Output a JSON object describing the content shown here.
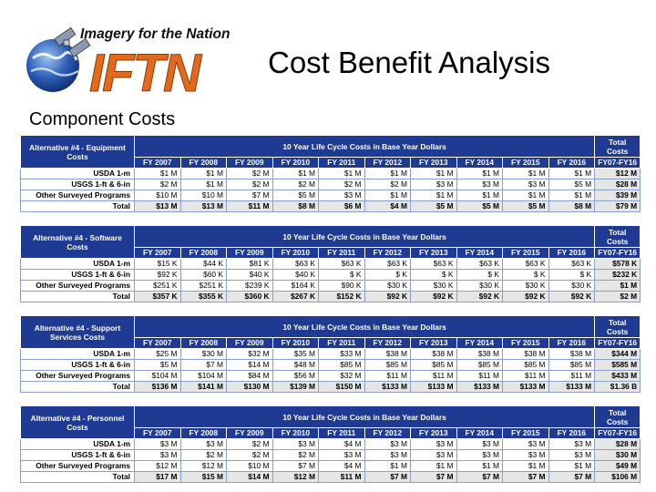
{
  "header": {
    "logo_tagline": "Imagery for the Nation",
    "logo_letters": "IFTN",
    "title": "Cost Benefit Analysis",
    "subtitle": "Component Costs"
  },
  "years": [
    "FY 2007",
    "FY 2008",
    "FY 2009",
    "FY 2010",
    "FY 2011",
    "FY 2012",
    "FY 2013",
    "FY 2014",
    "FY 2015",
    "FY 2016"
  ],
  "span_label": "10 Year Life Cycle Costs in Base Year Dollars",
  "total_header_1": "Total Costs",
  "total_header_2": "FY07-FY16",
  "tables": [
    {
      "title": "Alternative #4 - Equipment Costs",
      "rows": [
        {
          "label": "USDA 1-m",
          "values": [
            "$1 M",
            "$1 M",
            "$2 M",
            "$1 M",
            "$1 M",
            "$1 M",
            "$1 M",
            "$1 M",
            "$1 M",
            "$1 M"
          ],
          "total": "$12 M"
        },
        {
          "label": "USGS 1-ft & 6-in",
          "values": [
            "$2 M",
            "$1 M",
            "$2 M",
            "$2 M",
            "$2 M",
            "$2 M",
            "$3 M",
            "$3 M",
            "$3 M",
            "$5 M"
          ],
          "total": "$28 M"
        },
        {
          "label": "Other Surveyed Programs",
          "values": [
            "$10 M",
            "$10 M",
            "$7 M",
            "$5 M",
            "$3 M",
            "$1 M",
            "$1 M",
            "$1 M",
            "$1 M",
            "$1 M"
          ],
          "total": "$39 M"
        },
        {
          "label": "Total",
          "values": [
            "$13 M",
            "$13 M",
            "$11 M",
            "$8 M",
            "$6 M",
            "$4 M",
            "$5 M",
            "$5 M",
            "$5 M",
            "$8 M"
          ],
          "total": "$79 M"
        }
      ]
    },
    {
      "title": "Alternative #4 - Software Costs",
      "rows": [
        {
          "label": "USDA 1-m",
          "values": [
            "$15 K",
            "$44 K",
            "$81 K",
            "$63 K",
            "$63 K",
            "$63 K",
            "$63 K",
            "$63 K",
            "$63 K",
            "$63 K"
          ],
          "total": "$578 K"
        },
        {
          "label": "USGS 1-ft & 6-in",
          "values": [
            "$92 K",
            "$60 K",
            "$40 K",
            "$40 K",
            "$ K",
            "$ K",
            "$ K",
            "$ K",
            "$ K",
            "$ K"
          ],
          "total": "$232 K"
        },
        {
          "label": "Other Surveyed Programs",
          "values": [
            "$251 K",
            "$251 K",
            "$239 K",
            "$164 K",
            "$90 K",
            "$30 K",
            "$30 K",
            "$30 K",
            "$30 K",
            "$30 K"
          ],
          "total": "$1 M"
        },
        {
          "label": "Total",
          "values": [
            "$357 K",
            "$355 K",
            "$360 K",
            "$267 K",
            "$152 K",
            "$92 K",
            "$92 K",
            "$92 K",
            "$92 K",
            "$92 K"
          ],
          "total": "$2 M"
        }
      ]
    },
    {
      "title": "Alternative #4 - Support Services Costs",
      "rows": [
        {
          "label": "USDA 1-m",
          "values": [
            "$25 M",
            "$30 M",
            "$32 M",
            "$35 M",
            "$33 M",
            "$38 M",
            "$38 M",
            "$38 M",
            "$38 M",
            "$38 M"
          ],
          "total": "$344 M"
        },
        {
          "label": "USGS 1-ft & 6-in",
          "values": [
            "$5 M",
            "$7 M",
            "$14 M",
            "$48 M",
            "$85 M",
            "$85 M",
            "$85 M",
            "$85 M",
            "$85 M",
            "$85 M"
          ],
          "total": "$585 M"
        },
        {
          "label": "Other Surveyed Programs",
          "values": [
            "$104 M",
            "$104 M",
            "$84 M",
            "$56 M",
            "$32 M",
            "$11 M",
            "$11 M",
            "$11 M",
            "$11 M",
            "$11 M"
          ],
          "total": "$433 M"
        },
        {
          "label": "Total",
          "values": [
            "$136 M",
            "$141 M",
            "$130 M",
            "$139 M",
            "$150 M",
            "$133 M",
            "$133 M",
            "$133 M",
            "$133 M",
            "$133 M"
          ],
          "total": "$1.36 B"
        }
      ]
    },
    {
      "title": "Alternative #4 - Personnel Costs",
      "rows": [
        {
          "label": "USDA 1-m",
          "values": [
            "$3 M",
            "$3 M",
            "$2 M",
            "$3 M",
            "$4 M",
            "$3 M",
            "$3 M",
            "$3 M",
            "$3 M",
            "$3 M"
          ],
          "total": "$28 M"
        },
        {
          "label": "USGS 1-ft & 6-in",
          "values": [
            "$3 M",
            "$2 M",
            "$2 M",
            "$2 M",
            "$3 M",
            "$3 M",
            "$3 M",
            "$3 M",
            "$3 M",
            "$3 M"
          ],
          "total": "$30 M"
        },
        {
          "label": "Other Surveyed Programs",
          "values": [
            "$12 M",
            "$12 M",
            "$10 M",
            "$7 M",
            "$4 M",
            "$1 M",
            "$1 M",
            "$1 M",
            "$1 M",
            "$1 M"
          ],
          "total": "$49 M"
        },
        {
          "label": "Total",
          "values": [
            "$17 M",
            "$15 M",
            "$14 M",
            "$12 M",
            "$11 M",
            "$7 M",
            "$7 M",
            "$7 M",
            "$7 M",
            "$7 M"
          ],
          "total": "$106 M"
        }
      ]
    }
  ]
}
